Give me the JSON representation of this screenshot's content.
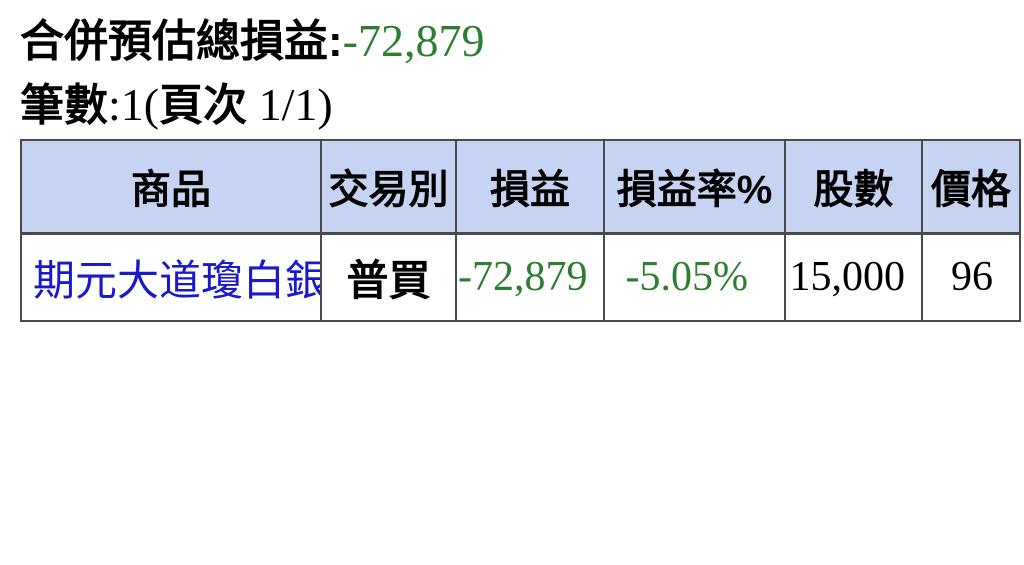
{
  "summary": {
    "total_label": "合併預估總損益:",
    "total_value": "-72,879",
    "count_label": "筆數",
    "count_mid": ":1(",
    "page_label": "頁次",
    "page_suffix": " 1/1)"
  },
  "colors": {
    "header_bg": "#c7d3f2",
    "table_border": "#4a4a4a",
    "loss_green": "#2e7d32",
    "product_blue": "#1a1acc",
    "text_black": "#000000"
  },
  "table": {
    "columns": [
      {
        "id": "product",
        "label": "商品"
      },
      {
        "id": "trade_type",
        "label": "交易別"
      },
      {
        "id": "pnl",
        "label": "損益"
      },
      {
        "id": "pnl_rate",
        "label": "損益率%"
      },
      {
        "id": "shares",
        "label": "股數"
      },
      {
        "id": "price",
        "label": "價格"
      }
    ],
    "rows": [
      {
        "product": "期元大道瓊白銀",
        "trade_type": "普買",
        "pnl": "-72,879",
        "pnl_rate": "-5.05%",
        "shares": "15,000",
        "price": "96"
      }
    ]
  }
}
